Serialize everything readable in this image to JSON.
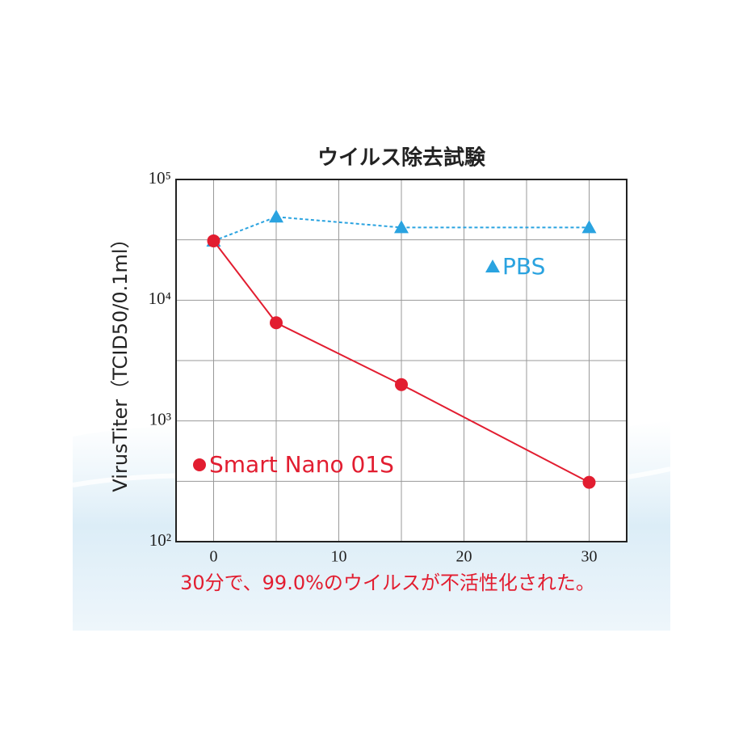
{
  "chart_data": {
    "type": "line",
    "title": "ウイルス除去試験",
    "y_label": "VirusTiter（TCID50/0.1ml）",
    "annotation": "30分で、99.0%のウイルスが不活性化された。",
    "x": [
      0,
      5,
      15,
      30
    ],
    "xlim": [
      -3,
      33
    ],
    "xticks": [
      0,
      10,
      20,
      30
    ],
    "x_minor_gridlines": [
      5,
      15,
      25
    ],
    "ylim": [
      100,
      100000
    ],
    "log_y": true,
    "yticks": [
      {
        "value": 100,
        "label": "10²"
      },
      {
        "value": 1000,
        "label": "10³"
      },
      {
        "value": 10000,
        "label": "10⁴"
      },
      {
        "value": 100000,
        "label": "10⁵"
      }
    ],
    "y_minor_gridlines": [
      316,
      3162,
      31623
    ],
    "grid": true,
    "series": [
      {
        "name": "PBS",
        "color": "#2aa3e0",
        "marker": "triangle",
        "dashed": true,
        "values": [
          31000,
          49000,
          40000,
          40000
        ]
      },
      {
        "name": "Smart Nano 01S",
        "color": "#e21d30",
        "marker": "circle",
        "dashed": false,
        "values": [
          31000,
          6500,
          2000,
          310
        ]
      }
    ]
  }
}
